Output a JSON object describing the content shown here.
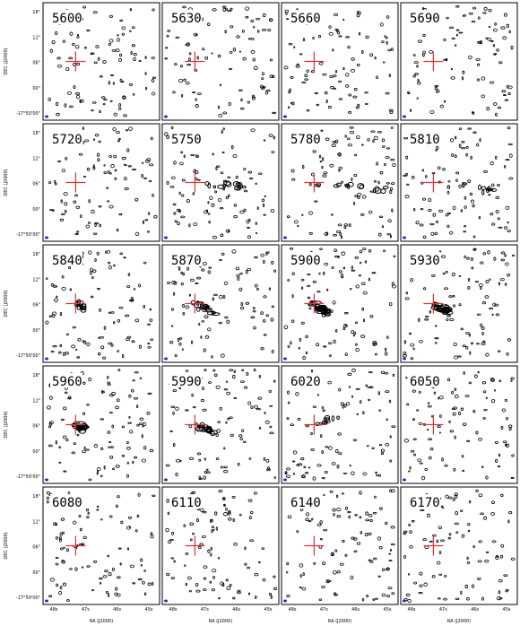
{
  "panels": [
    {
      "label": "5600"
    },
    {
      "label": "5630"
    },
    {
      "label": "5660"
    },
    {
      "label": "5690"
    },
    {
      "label": "5720"
    },
    {
      "label": "5750"
    },
    {
      "label": "5780"
    },
    {
      "label": "5810"
    },
    {
      "label": "5840"
    },
    {
      "label": "5870"
    },
    {
      "label": "5900"
    },
    {
      "label": "5930"
    },
    {
      "label": "5960"
    },
    {
      "label": "5990"
    },
    {
      "label": "6020"
    },
    {
      "label": "6050"
    },
    {
      "label": "6080"
    },
    {
      "label": "6110"
    },
    {
      "label": "6140"
    },
    {
      "label": "6170"
    }
  ],
  "axes": {
    "y_label": "DEC (J2000)",
    "x_label": "RA (J2000)",
    "y_ticks": [
      "18\"",
      "12\"",
      "06\"",
      "00\"",
      "-17°50'00\""
    ],
    "x_ticks": [
      "48s",
      "47s",
      "46s",
      "45s"
    ]
  }
}
